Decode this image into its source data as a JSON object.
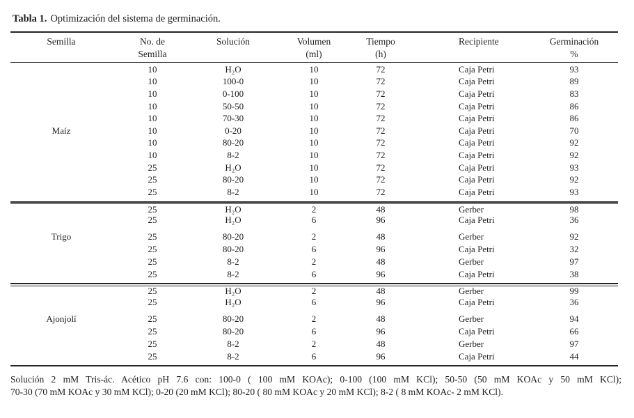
{
  "title": {
    "label": "Tabla 1.",
    "text": "Optimización del sistema de germinación."
  },
  "table": {
    "headers": [
      {
        "line1": "Semilla",
        "line2": ""
      },
      {
        "line1": "No. de",
        "line2": "Semilla"
      },
      {
        "line1": "Solución",
        "line2": ""
      },
      {
        "line1": "Volumen",
        "line2": "(ml)"
      },
      {
        "line1": "Tiempo",
        "line2": "(h)"
      },
      {
        "line1": "Recipiente",
        "line2": ""
      },
      {
        "line1": "Germinación",
        "line2": "%"
      }
    ],
    "sections": [
      {
        "semilla": "Maíz",
        "rows": [
          [
            "10",
            "H₂O",
            "10",
            "72",
            "Caja Petri",
            "93"
          ],
          [
            "10",
            "100-0",
            "10",
            "72",
            "Caja Petri",
            "89"
          ],
          [
            "10",
            "0-100",
            "10",
            "72",
            "Caja Petri",
            "83"
          ],
          [
            "10",
            "50-50",
            "10",
            "72",
            "Caja Petri",
            "86"
          ],
          [
            "10",
            "70-30",
            "10",
            "72",
            "Caja Petri",
            "86"
          ],
          [
            "10",
            "0-20",
            "10",
            "72",
            "Caja Petri",
            "70"
          ],
          [
            "10",
            "80-20",
            "10",
            "72",
            "Caja Petri",
            "92"
          ],
          [
            "10",
            "8-2",
            "10",
            "72",
            "Caja Petri",
            "92"
          ],
          [
            "25",
            "H₂O",
            "10",
            "72",
            "Caja Petri",
            "93"
          ],
          [
            "25",
            "80-20",
            "10",
            "72",
            "Caja Petri",
            "92"
          ],
          [
            "25",
            "8-2",
            "10",
            "72",
            "Caja Petri",
            "93"
          ]
        ]
      },
      {
        "semilla": "Trigo",
        "rows": [
          [
            "25",
            "H₂O",
            "2",
            "48",
            "Gerber",
            "98"
          ],
          [
            "25",
            "H₂O",
            "6",
            "96",
            "Caja Petri",
            "36"
          ],
          [
            "25",
            "80-20",
            "2",
            "48",
            "Gerber",
            "92"
          ],
          [
            "25",
            "80-20",
            "6",
            "96",
            "Caja Petri",
            "32"
          ],
          [
            "25",
            "8-2",
            "2",
            "48",
            "Gerber",
            "97"
          ],
          [
            "25",
            "8-2",
            "6",
            "96",
            "Caja Petri",
            "38"
          ]
        ]
      },
      {
        "semilla": "Ajonjolí",
        "rows": [
          [
            "25",
            "H₂O",
            "2",
            "48",
            "Gerber",
            "99"
          ],
          [
            "25",
            "H₂O",
            "6",
            "96",
            "Caja Petri",
            "36"
          ],
          [
            "25",
            "80-20",
            "2",
            "48",
            "Gerber",
            "94"
          ],
          [
            "25",
            "80-20",
            "6",
            "96",
            "Caja Petri",
            "66"
          ],
          [
            "25",
            "8-2",
            "2",
            "48",
            "Gerber",
            "97"
          ],
          [
            "25",
            "8-2",
            "6",
            "96",
            "Caja Petri",
            "44"
          ]
        ]
      }
    ]
  },
  "footnote": {
    "line1": "Solución 2 mM Tris-ác. Acético pH 7.6 con: 100-0 ( 100 mM KOAc); 0-100 (100 mM KCl); 50-50 (50 mM KOAc y 50 mM KCl);",
    "line2": "70-30 (70 mM KOAc y 30 mM KCl); 0-20 (20 mM KCl); 80-20 ( 80 mM KOAc y 20 mM KCl); 8-2 ( 8 mM KOAc- 2 mM KCl)."
  }
}
